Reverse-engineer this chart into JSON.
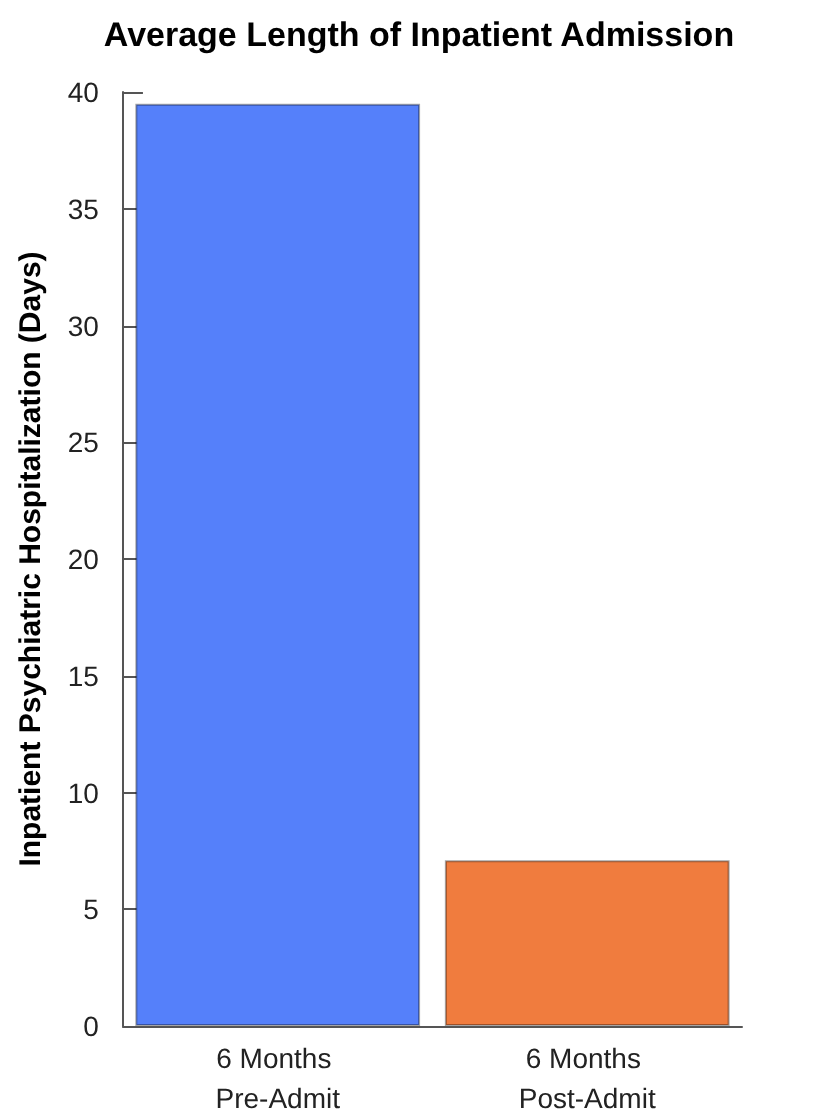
{
  "chart_data": {
    "type": "bar",
    "title": "Average Length of Inpatient Admission",
    "ylabel": "Inpatient Psychiatric Hospitalization (Days)",
    "categories": [
      "6 Months Pre-Admit",
      "6 Months Post-Admit"
    ],
    "values": [
      39.5,
      7.1
    ],
    "colors": [
      "#5580fa",
      "#f07c3e"
    ],
    "ylim": [
      0,
      40
    ],
    "yticks": [
      0,
      5,
      10,
      15,
      20,
      25,
      30,
      35,
      40
    ],
    "grid": false
  }
}
